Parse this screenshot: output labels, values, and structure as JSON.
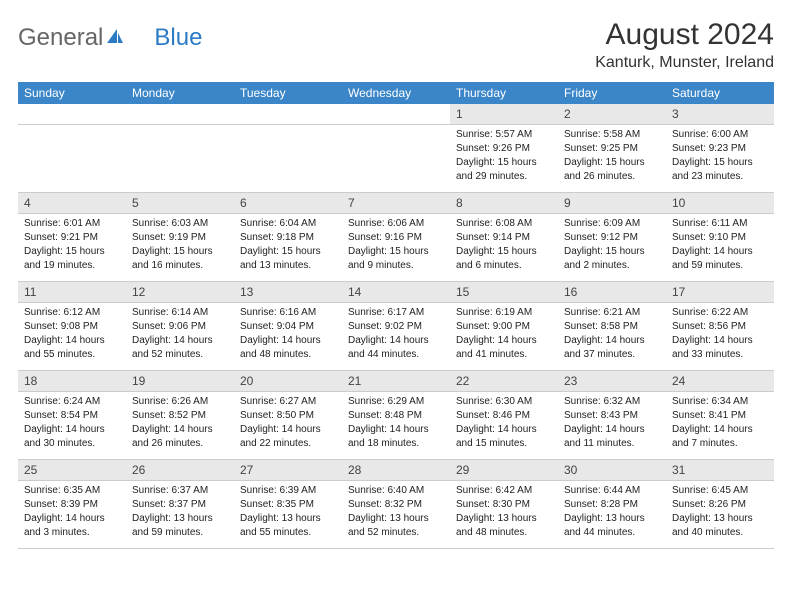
{
  "brand": {
    "part1": "General",
    "part2": "Blue"
  },
  "title": "August 2024",
  "location": "Kanturk, Munster, Ireland",
  "colors": {
    "header_bg": "#3b86c8",
    "header_text": "#ffffff",
    "daynum_bg": "#e8e8e8",
    "border": "#cccccc",
    "brand_gray": "#666666",
    "brand_blue": "#2d7bc4"
  },
  "days_of_week": [
    "Sunday",
    "Monday",
    "Tuesday",
    "Wednesday",
    "Thursday",
    "Friday",
    "Saturday"
  ],
  "weeks": [
    [
      null,
      null,
      null,
      null,
      {
        "n": "1",
        "sr": "Sunrise: 5:57 AM",
        "ss": "Sunset: 9:26 PM",
        "dl": "Daylight: 15 hours and 29 minutes."
      },
      {
        "n": "2",
        "sr": "Sunrise: 5:58 AM",
        "ss": "Sunset: 9:25 PM",
        "dl": "Daylight: 15 hours and 26 minutes."
      },
      {
        "n": "3",
        "sr": "Sunrise: 6:00 AM",
        "ss": "Sunset: 9:23 PM",
        "dl": "Daylight: 15 hours and 23 minutes."
      }
    ],
    [
      {
        "n": "4",
        "sr": "Sunrise: 6:01 AM",
        "ss": "Sunset: 9:21 PM",
        "dl": "Daylight: 15 hours and 19 minutes."
      },
      {
        "n": "5",
        "sr": "Sunrise: 6:03 AM",
        "ss": "Sunset: 9:19 PM",
        "dl": "Daylight: 15 hours and 16 minutes."
      },
      {
        "n": "6",
        "sr": "Sunrise: 6:04 AM",
        "ss": "Sunset: 9:18 PM",
        "dl": "Daylight: 15 hours and 13 minutes."
      },
      {
        "n": "7",
        "sr": "Sunrise: 6:06 AM",
        "ss": "Sunset: 9:16 PM",
        "dl": "Daylight: 15 hours and 9 minutes."
      },
      {
        "n": "8",
        "sr": "Sunrise: 6:08 AM",
        "ss": "Sunset: 9:14 PM",
        "dl": "Daylight: 15 hours and 6 minutes."
      },
      {
        "n": "9",
        "sr": "Sunrise: 6:09 AM",
        "ss": "Sunset: 9:12 PM",
        "dl": "Daylight: 15 hours and 2 minutes."
      },
      {
        "n": "10",
        "sr": "Sunrise: 6:11 AM",
        "ss": "Sunset: 9:10 PM",
        "dl": "Daylight: 14 hours and 59 minutes."
      }
    ],
    [
      {
        "n": "11",
        "sr": "Sunrise: 6:12 AM",
        "ss": "Sunset: 9:08 PM",
        "dl": "Daylight: 14 hours and 55 minutes."
      },
      {
        "n": "12",
        "sr": "Sunrise: 6:14 AM",
        "ss": "Sunset: 9:06 PM",
        "dl": "Daylight: 14 hours and 52 minutes."
      },
      {
        "n": "13",
        "sr": "Sunrise: 6:16 AM",
        "ss": "Sunset: 9:04 PM",
        "dl": "Daylight: 14 hours and 48 minutes."
      },
      {
        "n": "14",
        "sr": "Sunrise: 6:17 AM",
        "ss": "Sunset: 9:02 PM",
        "dl": "Daylight: 14 hours and 44 minutes."
      },
      {
        "n": "15",
        "sr": "Sunrise: 6:19 AM",
        "ss": "Sunset: 9:00 PM",
        "dl": "Daylight: 14 hours and 41 minutes."
      },
      {
        "n": "16",
        "sr": "Sunrise: 6:21 AM",
        "ss": "Sunset: 8:58 PM",
        "dl": "Daylight: 14 hours and 37 minutes."
      },
      {
        "n": "17",
        "sr": "Sunrise: 6:22 AM",
        "ss": "Sunset: 8:56 PM",
        "dl": "Daylight: 14 hours and 33 minutes."
      }
    ],
    [
      {
        "n": "18",
        "sr": "Sunrise: 6:24 AM",
        "ss": "Sunset: 8:54 PM",
        "dl": "Daylight: 14 hours and 30 minutes."
      },
      {
        "n": "19",
        "sr": "Sunrise: 6:26 AM",
        "ss": "Sunset: 8:52 PM",
        "dl": "Daylight: 14 hours and 26 minutes."
      },
      {
        "n": "20",
        "sr": "Sunrise: 6:27 AM",
        "ss": "Sunset: 8:50 PM",
        "dl": "Daylight: 14 hours and 22 minutes."
      },
      {
        "n": "21",
        "sr": "Sunrise: 6:29 AM",
        "ss": "Sunset: 8:48 PM",
        "dl": "Daylight: 14 hours and 18 minutes."
      },
      {
        "n": "22",
        "sr": "Sunrise: 6:30 AM",
        "ss": "Sunset: 8:46 PM",
        "dl": "Daylight: 14 hours and 15 minutes."
      },
      {
        "n": "23",
        "sr": "Sunrise: 6:32 AM",
        "ss": "Sunset: 8:43 PM",
        "dl": "Daylight: 14 hours and 11 minutes."
      },
      {
        "n": "24",
        "sr": "Sunrise: 6:34 AM",
        "ss": "Sunset: 8:41 PM",
        "dl": "Daylight: 14 hours and 7 minutes."
      }
    ],
    [
      {
        "n": "25",
        "sr": "Sunrise: 6:35 AM",
        "ss": "Sunset: 8:39 PM",
        "dl": "Daylight: 14 hours and 3 minutes."
      },
      {
        "n": "26",
        "sr": "Sunrise: 6:37 AM",
        "ss": "Sunset: 8:37 PM",
        "dl": "Daylight: 13 hours and 59 minutes."
      },
      {
        "n": "27",
        "sr": "Sunrise: 6:39 AM",
        "ss": "Sunset: 8:35 PM",
        "dl": "Daylight: 13 hours and 55 minutes."
      },
      {
        "n": "28",
        "sr": "Sunrise: 6:40 AM",
        "ss": "Sunset: 8:32 PM",
        "dl": "Daylight: 13 hours and 52 minutes."
      },
      {
        "n": "29",
        "sr": "Sunrise: 6:42 AM",
        "ss": "Sunset: 8:30 PM",
        "dl": "Daylight: 13 hours and 48 minutes."
      },
      {
        "n": "30",
        "sr": "Sunrise: 6:44 AM",
        "ss": "Sunset: 8:28 PM",
        "dl": "Daylight: 13 hours and 44 minutes."
      },
      {
        "n": "31",
        "sr": "Sunrise: 6:45 AM",
        "ss": "Sunset: 8:26 PM",
        "dl": "Daylight: 13 hours and 40 minutes."
      }
    ]
  ]
}
